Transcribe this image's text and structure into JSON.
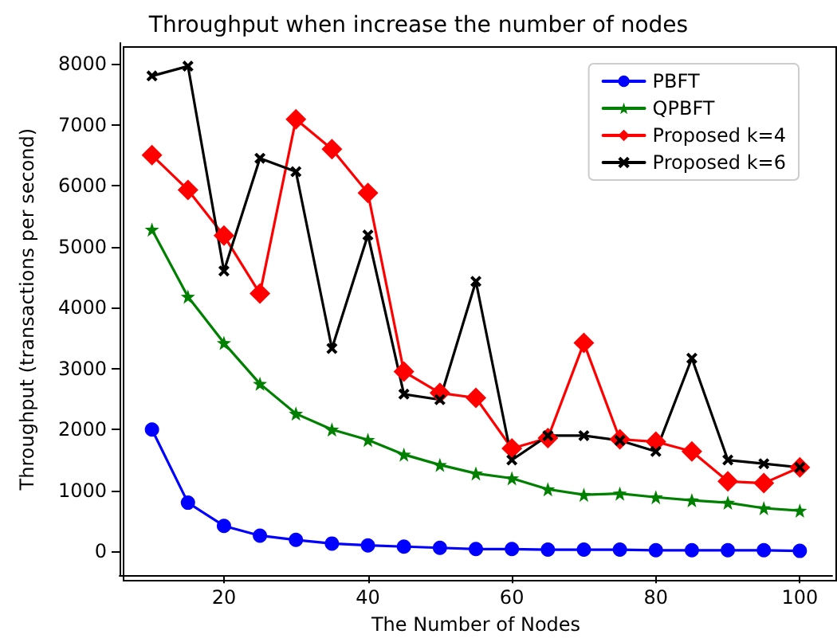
{
  "chart_data": {
    "type": "line",
    "title": "Throughput when increase the number of nodes",
    "xlabel": "The Number of Nodes",
    "ylabel": "Throughput (transactions per second)",
    "x": [
      10,
      15,
      20,
      25,
      30,
      35,
      40,
      45,
      50,
      55,
      60,
      65,
      70,
      75,
      80,
      85,
      90,
      95,
      100
    ],
    "xlim": [
      5.5,
      104.5
    ],
    "xticks": [
      20,
      40,
      60,
      80,
      100
    ],
    "ylim": [
      -390,
      8340
    ],
    "yticks": [
      0,
      1000,
      2000,
      3000,
      4000,
      5000,
      6000,
      7000,
      8000
    ],
    "grid": false,
    "legend": "top right",
    "line_style": "solid",
    "series": [
      {
        "name": "PBFT",
        "color": "#0000ff",
        "marker": "circle",
        "values": [
          2000,
          800,
          420,
          260,
          190,
          130,
          100,
          80,
          60,
          40,
          40,
          30,
          30,
          30,
          20,
          20,
          20,
          20,
          10
        ]
      },
      {
        "name": "QPBFT",
        "color": "#008000",
        "marker": "star",
        "values": [
          5280,
          4180,
          3420,
          2750,
          2260,
          2000,
          1830,
          1590,
          1420,
          1280,
          1200,
          1020,
          930,
          950,
          890,
          840,
          800,
          710,
          670
        ]
      },
      {
        "name": "Proposed k=4",
        "color": "#ff0000",
        "marker": "diamond",
        "values": [
          6500,
          5930,
          5180,
          4230,
          7090,
          6600,
          5880,
          2950,
          2600,
          2520,
          1690,
          1860,
          3420,
          1840,
          1800,
          1640,
          1150,
          1120,
          1380
        ]
      },
      {
        "name": "Proposed k=6",
        "color": "#000000",
        "marker": "cross",
        "values": [
          7800,
          7960,
          4600,
          6450,
          6230,
          3330,
          5190,
          2580,
          2490,
          4430,
          1500,
          1900,
          1900,
          1820,
          1640,
          3170,
          1500,
          1440,
          1380
        ]
      }
    ]
  }
}
